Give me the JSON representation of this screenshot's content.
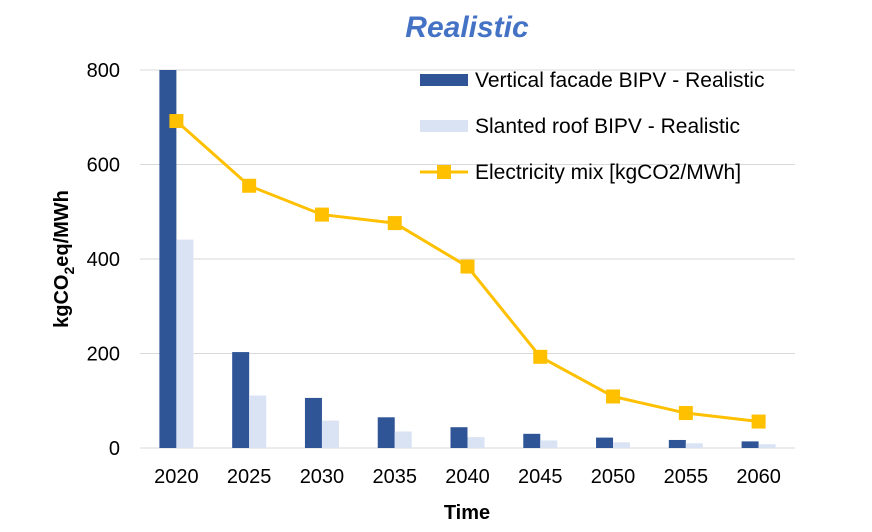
{
  "chart_data": {
    "type": "bar",
    "title": "Realistic",
    "xlabel": "Time",
    "ylabel_parts": [
      "kgCO",
      "2",
      "eq/MWh"
    ],
    "categories": [
      "2020",
      "2025",
      "2030",
      "2035",
      "2040",
      "2045",
      "2050",
      "2055",
      "2060"
    ],
    "ylim": [
      0,
      800
    ],
    "yticks": [
      0,
      200,
      400,
      600,
      800
    ],
    "grid": true,
    "legend_position": "top-right",
    "series": [
      {
        "name": "Vertical facade BIPV - Realistic",
        "type": "bar",
        "color": "#2F5597",
        "values": [
          800,
          203,
          106,
          65,
          44,
          30,
          22,
          17,
          14
        ]
      },
      {
        "name": "Slanted roof BIPV - Realistic",
        "type": "bar",
        "color": "#DAE3F3",
        "values": [
          441,
          111,
          58,
          35,
          23,
          16,
          12,
          10,
          8
        ]
      },
      {
        "name": "Electricity mix [kgCO2/MWh]",
        "type": "line",
        "color": "#FFC000",
        "marker": "square",
        "values": [
          692,
          555,
          494,
          476,
          384,
          193,
          109,
          74,
          56
        ]
      }
    ]
  },
  "colors": {
    "title": "#4472C4",
    "grid": "#D9D9D9"
  }
}
